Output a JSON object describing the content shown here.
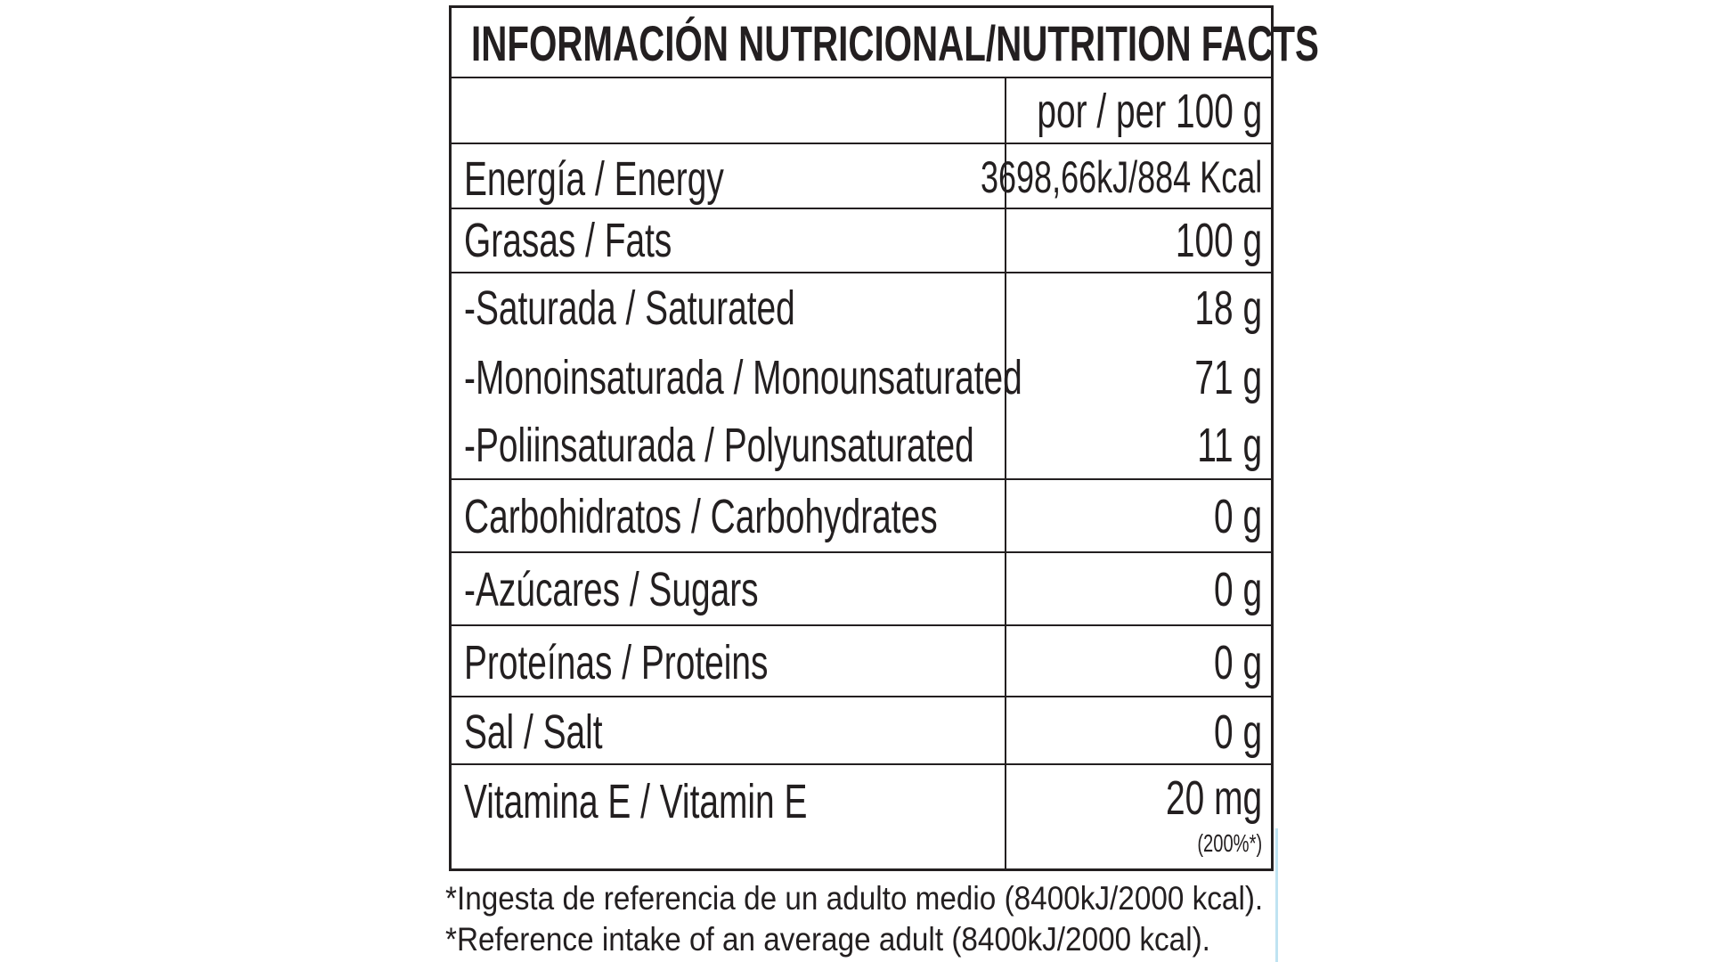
{
  "title": "INFORMACIÓN NUTRICIONAL/NUTRITION FACTS",
  "per_header": "por / per 100 g",
  "rows": [
    {
      "label": "Energía / Energy",
      "value": "3698,66kJ/884 Kcal"
    },
    {
      "label": "Grasas / Fats",
      "value": "100 g"
    },
    {
      "label": "-Saturada / Saturated",
      "value": "18 g"
    },
    {
      "label": "-Monoinsaturada / Monounsaturated",
      "value": "71 g"
    },
    {
      "label": "-Poliinsaturada / Polyunsaturated",
      "value": "11 g"
    },
    {
      "label": "Carbohidratos / Carbohydrates",
      "value": "0 g"
    },
    {
      "label": "-Azúcares / Sugars",
      "value": "0 g"
    },
    {
      "label": "Proteínas / Proteins",
      "value": "0 g"
    },
    {
      "label": "Sal / Salt",
      "value": "0 g"
    },
    {
      "label": "Vitamina E / Vitamin E",
      "value": "20 mg",
      "note": "(200%*)"
    }
  ],
  "footnotes": [
    "*Ingesta de referencia de un adulto medio (8400kJ/2000 kcal).",
    "*Reference intake of an average adult (8400kJ/2000 kcal)."
  ]
}
